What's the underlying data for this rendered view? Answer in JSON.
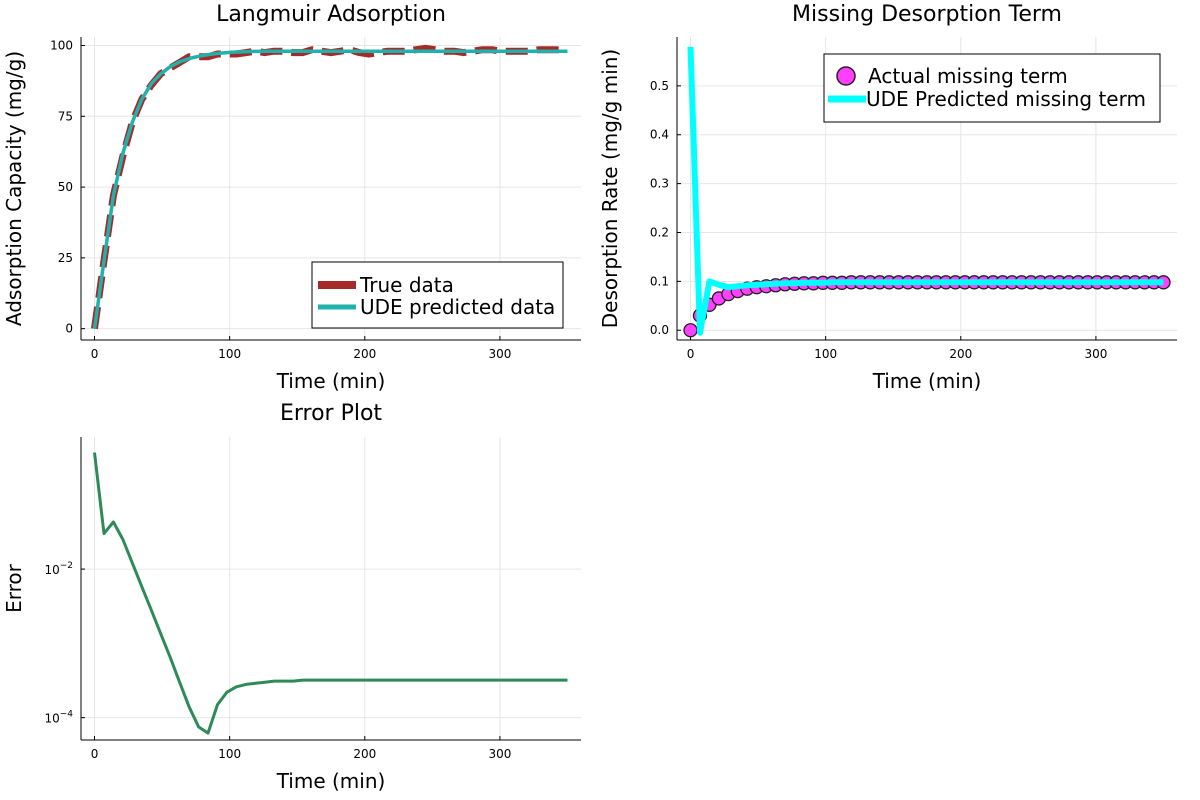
{
  "chart_data": [
    {
      "type": "line",
      "title": "Langmuir Adsorption",
      "xlabel": "Time (min)",
      "ylabel": "Adsorption Capacity (mg/g)",
      "xlim": [
        -10,
        360
      ],
      "ylim": [
        -4,
        103
      ],
      "xticks": [
        0,
        100,
        200,
        300
      ],
      "yticks": [
        0,
        25,
        50,
        75,
        100
      ],
      "grid": true,
      "legend": "bottom-right",
      "series": [
        {
          "name": "True data",
          "color": "#a52a2a",
          "x": [
            0,
            7,
            14,
            21,
            28,
            35,
            42,
            49,
            56,
            63,
            70,
            77,
            84,
            91,
            98,
            105,
            112,
            119,
            126,
            133,
            140,
            147,
            154,
            161,
            168,
            175,
            182,
            189,
            196,
            203,
            210,
            217,
            224,
            231,
            238,
            245,
            252,
            259,
            266,
            273,
            280,
            287,
            294,
            301,
            308,
            315,
            322,
            329,
            336,
            343,
            350
          ],
          "values": [
            0,
            24,
            47,
            61,
            73,
            81,
            86,
            90,
            92,
            94,
            96,
            96,
            96,
            97,
            97,
            97,
            97.5,
            98,
            97.5,
            98,
            98,
            97.5,
            97.5,
            98.5,
            98,
            97.5,
            98,
            98.5,
            97.5,
            97,
            97.5,
            98,
            98,
            98,
            98.5,
            99,
            98.5,
            98,
            98,
            97.5,
            98,
            98.5,
            98.5,
            98,
            98,
            98,
            98,
            98.5,
            98.5,
            98.5,
            98.5
          ]
        },
        {
          "name": "UDE predicted data",
          "color": "#20b2aa",
          "x": [
            0,
            7,
            14,
            21,
            28,
            35,
            42,
            49,
            56,
            63,
            70,
            77,
            84,
            91,
            98,
            105,
            112,
            119,
            126,
            133,
            140,
            147,
            154,
            161,
            168,
            175,
            182,
            189,
            196,
            203,
            210,
            217,
            224,
            231,
            238,
            245,
            252,
            259,
            266,
            273,
            280,
            287,
            294,
            301,
            308,
            315,
            322,
            329,
            336,
            343,
            350
          ],
          "values": [
            0,
            24,
            47,
            62,
            73,
            81,
            86.5,
            90,
            92.5,
            94.2,
            95.4,
            96.2,
            96.8,
            97.2,
            97.5,
            97.7,
            97.8,
            97.9,
            98,
            98,
            98,
            98,
            98,
            98,
            98,
            98,
            98,
            98,
            98,
            98,
            98,
            98,
            98,
            98,
            98,
            98,
            98,
            98,
            98,
            98,
            98,
            98,
            98,
            98,
            98,
            98,
            98,
            98,
            98,
            98,
            98
          ]
        }
      ]
    },
    {
      "type": "line",
      "title": "Missing Desorption Term",
      "xlabel": "Time (min)",
      "ylabel": "Desorption Rate (mg/g min)",
      "xlim": [
        -10,
        360
      ],
      "ylim": [
        -0.02,
        0.6
      ],
      "xticks": [
        0,
        100,
        200,
        300
      ],
      "yticks": [
        0.0,
        0.1,
        0.2,
        0.3,
        0.4,
        0.5
      ],
      "ytick_labels": [
        "0.0",
        "0.1",
        "0.2",
        "0.3",
        "0.4",
        "0.5"
      ],
      "grid": true,
      "legend": "top-right",
      "series": [
        {
          "name": "Actual missing term",
          "color": "#ff40ff",
          "marker": "circle",
          "x": [
            0,
            7,
            14,
            21,
            28,
            35,
            42,
            49,
            56,
            63,
            70,
            77,
            84,
            91,
            98,
            105,
            112,
            119,
            126,
            133,
            140,
            147,
            154,
            161,
            168,
            175,
            182,
            189,
            196,
            203,
            210,
            217,
            224,
            231,
            238,
            245,
            252,
            259,
            266,
            273,
            280,
            287,
            294,
            301,
            308,
            315,
            322,
            329,
            336,
            343,
            350
          ],
          "values": [
            0.0,
            0.03,
            0.052,
            0.065,
            0.074,
            0.08,
            0.085,
            0.088,
            0.09,
            0.092,
            0.094,
            0.095,
            0.096,
            0.096,
            0.097,
            0.097,
            0.097,
            0.098,
            0.098,
            0.098,
            0.098,
            0.098,
            0.098,
            0.098,
            0.098,
            0.098,
            0.098,
            0.098,
            0.098,
            0.098,
            0.098,
            0.098,
            0.098,
            0.098,
            0.098,
            0.098,
            0.098,
            0.098,
            0.098,
            0.098,
            0.098,
            0.098,
            0.098,
            0.098,
            0.098,
            0.098,
            0.098,
            0.098,
            0.098,
            0.098,
            0.098
          ]
        },
        {
          "name": "UDE Predicted missing term",
          "color": "#00ffff",
          "x": [
            0,
            7,
            14,
            21,
            28,
            35,
            42,
            49,
            56,
            63,
            70,
            77,
            84,
            91,
            98,
            105,
            112,
            119,
            126,
            133,
            140,
            147,
            154,
            161,
            168,
            175,
            182,
            189,
            196,
            203,
            210,
            217,
            224,
            231,
            238,
            245,
            252,
            259,
            266,
            273,
            280,
            287,
            294,
            301,
            308,
            315,
            322,
            329,
            336,
            343,
            350
          ],
          "values": [
            0.58,
            -0.005,
            0.1,
            0.093,
            0.088,
            0.09,
            0.092,
            0.093,
            0.094,
            0.095,
            0.096,
            0.096,
            0.097,
            0.097,
            0.097,
            0.098,
            0.098,
            0.098,
            0.098,
            0.098,
            0.098,
            0.098,
            0.098,
            0.098,
            0.098,
            0.098,
            0.098,
            0.098,
            0.098,
            0.098,
            0.098,
            0.098,
            0.098,
            0.098,
            0.098,
            0.098,
            0.098,
            0.098,
            0.098,
            0.098,
            0.098,
            0.098,
            0.098,
            0.098,
            0.098,
            0.098,
            0.098,
            0.098,
            0.098,
            0.098,
            0.098
          ]
        }
      ]
    },
    {
      "type": "line",
      "title": "Error Plot",
      "xlabel": "Time (min)",
      "ylabel": "Error",
      "yscale": "log",
      "xlim": [
        -10,
        360
      ],
      "ylim": [
        5e-05,
        0.6
      ],
      "xticks": [
        0,
        100,
        200,
        300
      ],
      "yticks": [
        0.0001,
        0.01
      ],
      "grid": true,
      "legend": "none",
      "series": [
        {
          "color": "#2e8b57",
          "x": [
            0,
            7,
            14,
            21,
            28,
            35,
            42,
            49,
            56,
            63,
            70,
            77,
            84,
            91,
            98,
            105,
            112,
            119,
            126,
            133,
            140,
            147,
            154,
            161,
            168,
            175,
            182,
            189,
            196,
            203,
            210,
            217,
            224,
            231,
            238,
            245,
            252,
            259,
            266,
            273,
            280,
            287,
            294,
            301,
            308,
            315,
            322,
            329,
            336,
            343,
            350
          ],
          "values": [
            0.37,
            0.03,
            0.043,
            0.025,
            0.012,
            0.0058,
            0.0028,
            0.00135,
            0.00065,
            0.0003,
            0.00014,
            7.5e-05,
            6.2e-05,
            0.00015,
            0.00022,
            0.00026,
            0.00028,
            0.00029,
            0.0003,
            0.00031,
            0.00031,
            0.00031,
            0.00032,
            0.00032,
            0.00032,
            0.00032,
            0.00032,
            0.00032,
            0.00032,
            0.00032,
            0.00032,
            0.00032,
            0.00032,
            0.00032,
            0.00032,
            0.00032,
            0.00032,
            0.00032,
            0.00032,
            0.00032,
            0.00032,
            0.00032,
            0.00032,
            0.00032,
            0.00032,
            0.00032,
            0.00032,
            0.00032,
            0.00032,
            0.00032,
            0.00032
          ]
        }
      ]
    }
  ]
}
